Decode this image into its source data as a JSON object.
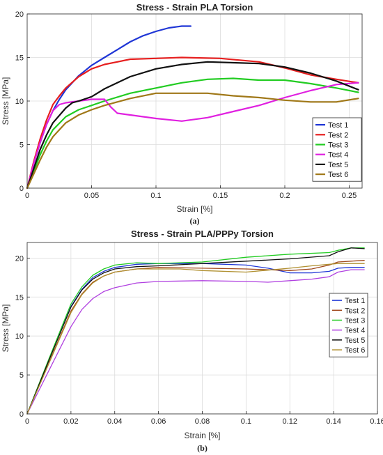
{
  "chart_data": [
    {
      "type": "line",
      "title": "Stress - Strain PLA Torsion",
      "xlabel": "Strain [%]",
      "ylabel": "Stress [MPa]",
      "caption": "(a)",
      "xlim": [
        0,
        0.26
      ],
      "ylim": [
        0,
        20
      ],
      "xticks": [
        0,
        0.05,
        0.1,
        0.15,
        0.2,
        0.25
      ],
      "yticks": [
        0,
        5,
        10,
        15,
        20
      ],
      "grid": true,
      "legend_position": "bottom-right",
      "series": [
        {
          "name": "Test 1",
          "color": "#1f36d6",
          "x": [
            0,
            0.005,
            0.01,
            0.015,
            0.02,
            0.025,
            0.03,
            0.04,
            0.05,
            0.06,
            0.07,
            0.08,
            0.09,
            0.1,
            0.11,
            0.12,
            0.127
          ],
          "y": [
            0,
            2.8,
            5.2,
            7.3,
            8.9,
            10.2,
            11.3,
            12.9,
            14.1,
            15.0,
            15.9,
            16.8,
            17.5,
            18.0,
            18.4,
            18.6,
            18.6
          ]
        },
        {
          "name": "Test 2",
          "color": "#e61e1e",
          "x": [
            0,
            0.005,
            0.01,
            0.015,
            0.02,
            0.025,
            0.03,
            0.04,
            0.05,
            0.06,
            0.07,
            0.08,
            0.1,
            0.12,
            0.15,
            0.18,
            0.2,
            0.22,
            0.24,
            0.257
          ],
          "y": [
            0,
            3.0,
            5.6,
            7.8,
            9.6,
            10.6,
            11.5,
            12.8,
            13.7,
            14.2,
            14.5,
            14.8,
            14.9,
            15.0,
            14.9,
            14.5,
            13.8,
            13.0,
            12.5,
            12.1
          ]
        },
        {
          "name": "Test 3",
          "color": "#22cc22",
          "x": [
            0,
            0.005,
            0.01,
            0.015,
            0.02,
            0.03,
            0.04,
            0.05,
            0.06,
            0.08,
            0.1,
            0.12,
            0.14,
            0.16,
            0.18,
            0.2,
            0.22,
            0.24,
            0.257
          ],
          "y": [
            0,
            1.9,
            3.8,
            5.4,
            6.7,
            8.2,
            9.0,
            9.5,
            10.0,
            10.9,
            11.5,
            12.1,
            12.5,
            12.6,
            12.4,
            12.4,
            12.0,
            11.5,
            11.0
          ]
        },
        {
          "name": "Test 4",
          "color": "#e020e0",
          "x": [
            0,
            0.005,
            0.01,
            0.015,
            0.02,
            0.025,
            0.03,
            0.04,
            0.05,
            0.06,
            0.065,
            0.07,
            0.08,
            0.1,
            0.12,
            0.14,
            0.16,
            0.18,
            0.2,
            0.22,
            0.24,
            0.257
          ],
          "y": [
            0,
            2.8,
            5.2,
            7.3,
            8.9,
            9.6,
            9.8,
            10.0,
            10.2,
            10.2,
            9.3,
            8.6,
            8.4,
            8.0,
            7.7,
            8.1,
            8.8,
            9.5,
            10.4,
            11.2,
            11.9,
            12.1
          ]
        },
        {
          "name": "Test 5",
          "color": "#111111",
          "x": [
            0,
            0.005,
            0.01,
            0.015,
            0.02,
            0.03,
            0.035,
            0.04,
            0.05,
            0.06,
            0.08,
            0.1,
            0.12,
            0.14,
            0.16,
            0.18,
            0.2,
            0.22,
            0.24,
            0.257
          ],
          "y": [
            0,
            2.2,
            4.4,
            6.1,
            7.5,
            9.2,
            9.8,
            10.0,
            10.5,
            11.4,
            12.8,
            13.7,
            14.2,
            14.5,
            14.4,
            14.3,
            13.9,
            13.2,
            12.3,
            11.3
          ]
        },
        {
          "name": "Test 6",
          "color": "#a07818",
          "x": [
            0,
            0.005,
            0.01,
            0.015,
            0.02,
            0.03,
            0.04,
            0.05,
            0.06,
            0.08,
            0.1,
            0.12,
            0.14,
            0.16,
            0.18,
            0.2,
            0.22,
            0.24,
            0.257
          ],
          "y": [
            0,
            1.6,
            3.2,
            4.7,
            5.9,
            7.5,
            8.4,
            9.0,
            9.5,
            10.3,
            10.9,
            10.9,
            10.9,
            10.6,
            10.4,
            10.1,
            9.9,
            9.9,
            10.3
          ]
        }
      ]
    },
    {
      "type": "line",
      "title": "Stress - Strain PLA/PPPy Torsion",
      "xlabel": "Strain [%]",
      "ylabel": "Stress [MPa]",
      "caption": "(b)",
      "xlim": [
        0,
        0.16
      ],
      "ylim": [
        0,
        22
      ],
      "xticks": [
        0,
        0.02,
        0.04,
        0.06,
        0.08,
        0.1,
        0.12,
        0.14,
        0.16
      ],
      "yticks": [
        0,
        5,
        10,
        15,
        20
      ],
      "grid": true,
      "legend_position": "right",
      "series": [
        {
          "name": "Test 1",
          "color": "#1f36d6",
          "x": [
            0,
            0.01,
            0.02,
            0.025,
            0.03,
            0.035,
            0.04,
            0.05,
            0.06,
            0.08,
            0.1,
            0.11,
            0.12,
            0.13,
            0.138,
            0.142,
            0.148,
            0.154
          ],
          "y": [
            0,
            7.0,
            13.8,
            16.0,
            17.5,
            18.3,
            18.8,
            19.2,
            19.3,
            19.3,
            19.1,
            18.7,
            18.1,
            18.1,
            18.3,
            18.7,
            18.8,
            18.8
          ]
        },
        {
          "name": "Test 2",
          "color": "#a0481c",
          "x": [
            0,
            0.01,
            0.02,
            0.025,
            0.03,
            0.035,
            0.04,
            0.05,
            0.06,
            0.08,
            0.1,
            0.12,
            0.13,
            0.138,
            0.142,
            0.148,
            0.154
          ],
          "y": [
            0,
            6.6,
            13.2,
            15.4,
            16.9,
            17.7,
            18.2,
            18.6,
            18.8,
            18.7,
            18.6,
            18.4,
            18.6,
            19.1,
            19.5,
            19.6,
            19.7
          ]
        },
        {
          "name": "Test 3",
          "color": "#22cc22",
          "x": [
            0,
            0.01,
            0.02,
            0.025,
            0.03,
            0.035,
            0.04,
            0.05,
            0.06,
            0.08,
            0.1,
            0.12,
            0.138,
            0.142,
            0.148,
            0.154
          ],
          "y": [
            0,
            7.1,
            14.1,
            16.3,
            17.8,
            18.6,
            19.1,
            19.4,
            19.3,
            19.5,
            20.1,
            20.5,
            20.7,
            21.0,
            21.3,
            21.3
          ]
        },
        {
          "name": "Test 4",
          "color": "#b040e0",
          "x": [
            0,
            0.01,
            0.02,
            0.025,
            0.03,
            0.035,
            0.04,
            0.05,
            0.06,
            0.08,
            0.1,
            0.11,
            0.12,
            0.13,
            0.138,
            0.142,
            0.148,
            0.154
          ],
          "y": [
            0,
            5.6,
            11.2,
            13.4,
            14.8,
            15.7,
            16.2,
            16.8,
            17.0,
            17.1,
            17.0,
            16.9,
            17.1,
            17.3,
            17.6,
            18.2,
            18.5,
            18.5
          ]
        },
        {
          "name": "Test 5",
          "color": "#111111",
          "x": [
            0,
            0.01,
            0.02,
            0.025,
            0.03,
            0.035,
            0.04,
            0.05,
            0.06,
            0.08,
            0.1,
            0.12,
            0.138,
            0.142,
            0.148,
            0.154
          ],
          "y": [
            0,
            6.9,
            13.7,
            15.9,
            17.3,
            18.1,
            18.6,
            18.9,
            19.0,
            19.3,
            19.6,
            19.9,
            20.3,
            20.8,
            21.3,
            21.2
          ]
        },
        {
          "name": "Test 6",
          "color": "#b09030",
          "x": [
            0,
            0.01,
            0.02,
            0.025,
            0.03,
            0.035,
            0.04,
            0.05,
            0.06,
            0.07,
            0.08,
            0.1,
            0.12,
            0.13,
            0.138,
            0.142,
            0.148,
            0.154
          ],
          "y": [
            0,
            6.5,
            13.0,
            15.3,
            16.8,
            17.7,
            18.2,
            18.6,
            18.6,
            18.6,
            18.4,
            18.2,
            18.7,
            19.0,
            19.2,
            19.3,
            19.3,
            19.3
          ]
        }
      ]
    }
  ]
}
